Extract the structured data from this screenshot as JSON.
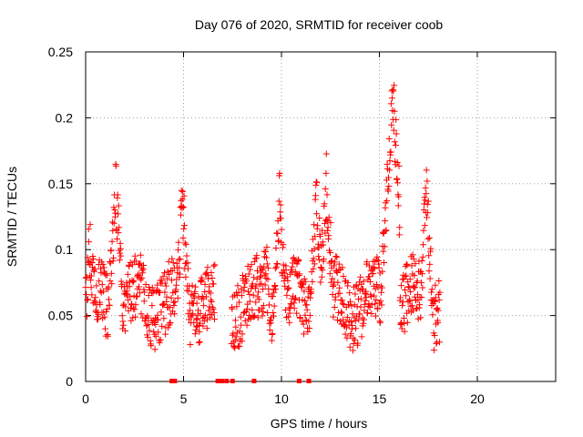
{
  "chart_data": {
    "type": "scatter",
    "title": "Day 076 of 2020, SRMTID for receiver coob",
    "xlabel": "GPS time / hours",
    "ylabel": "SRMTID / TECUs",
    "xlim": [
      0,
      24
    ],
    "ylim": [
      0,
      0.25
    ],
    "xticks": [
      0,
      5,
      10,
      15,
      20
    ],
    "xtick_labels": [
      "0",
      "5",
      "10",
      "15",
      "20"
    ],
    "yticks": [
      0,
      0.05,
      0.1,
      0.15,
      0.2,
      0.25
    ],
    "ytick_labels": [
      "0",
      "0.05",
      "0.1",
      "0.15",
      "0.2",
      "0.25"
    ],
    "grid": true,
    "marker": "+",
    "color": "#ff0000",
    "series": [
      {
        "name": "SRMTID",
        "segments": [
          {
            "x_start": 0.0,
            "x_end": 6.6,
            "baseline": 0.06,
            "peaks": [
              [
                0.2,
                0.13
              ],
              [
                1.55,
                0.17
              ],
              [
                2.8,
                0.11
              ],
              [
                4.95,
                0.16
              ],
              [
                5.5,
                0.09
              ]
            ]
          },
          {
            "x_start": 7.45,
            "x_end": 18.1,
            "baseline": 0.06,
            "peaks": [
              [
                9.2,
                0.12
              ],
              [
                9.9,
                0.16
              ],
              [
                11.8,
                0.16
              ],
              [
                12.3,
                0.175
              ],
              [
                15.4,
                0.17
              ],
              [
                15.7,
                0.24
              ],
              [
                16.6,
                0.1
              ],
              [
                17.4,
                0.165
              ]
            ]
          }
        ]
      }
    ],
    "zero_markers_x": [
      4.4,
      4.55,
      6.75,
      6.95,
      7.2,
      7.5,
      8.6,
      10.9,
      11.4
    ]
  }
}
